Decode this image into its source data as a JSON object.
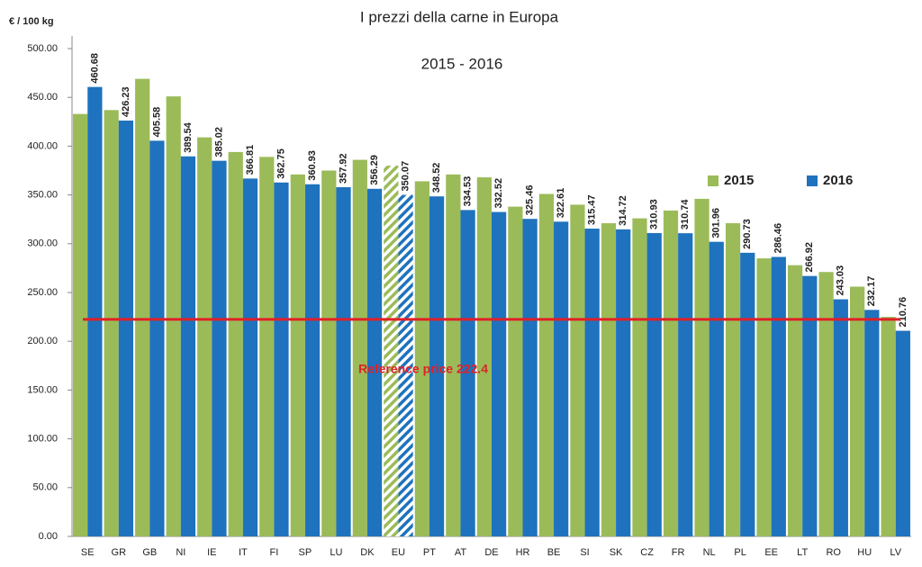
{
  "chart_data": {
    "type": "bar",
    "title": "I prezzi della carne in Europa",
    "subtitle": "2015 - 2016",
    "y_label": "€ / 100 kg",
    "categories": [
      "SE",
      "GR",
      "GB",
      "NI",
      "IE",
      "IT",
      "FI",
      "SP",
      "LU",
      "DK",
      "EU",
      "PT",
      "AT",
      "DE",
      "HR",
      "BE",
      "SI",
      "SK",
      "CZ",
      "FR",
      "NL",
      "PL",
      "EE",
      "LT",
      "RO",
      "HU",
      "LV"
    ],
    "series": [
      {
        "name": "2015",
        "color": "#9bbb59",
        "values": [
          433,
          437,
          469,
          451,
          409,
          394,
          389,
          371,
          375,
          386,
          380,
          364,
          371,
          368,
          338,
          351,
          340,
          321,
          326,
          334,
          346,
          321,
          285,
          278,
          271,
          256,
          225
        ]
      },
      {
        "name": "2016",
        "color": "#1f72bd",
        "values": [
          460.68,
          426.23,
          405.58,
          389.54,
          385.02,
          366.81,
          362.75,
          360.93,
          357.92,
          356.29,
          350.07,
          348.52,
          334.53,
          332.52,
          325.46,
          322.61,
          315.47,
          314.72,
          310.93,
          310.74,
          301.96,
          290.73,
          286.46,
          266.92,
          243.03,
          232.17,
          210.76
        ]
      }
    ],
    "hatched_category": "EU",
    "reference": {
      "value": 222.4,
      "label": "Reference price 222.4",
      "color": "#e02027"
    },
    "ylim": [
      0,
      500
    ],
    "yticks": [
      {
        "value": 0,
        "label": "0.00"
      },
      {
        "value": 50,
        "label": "50.00"
      },
      {
        "value": 100,
        "label": "100.00"
      },
      {
        "value": 150,
        "label": "150.00"
      },
      {
        "value": 200,
        "label": "200.00"
      },
      {
        "value": 250,
        "label": "250.00"
      },
      {
        "value": 300,
        "label": "300.00"
      },
      {
        "value": 350,
        "label": "350.00"
      },
      {
        "value": 400,
        "label": "400.00"
      },
      {
        "value": 450,
        "label": "450.00"
      },
      {
        "value": 500,
        "label": "500.00"
      }
    ],
    "grid": false,
    "legend": "upper right"
  }
}
